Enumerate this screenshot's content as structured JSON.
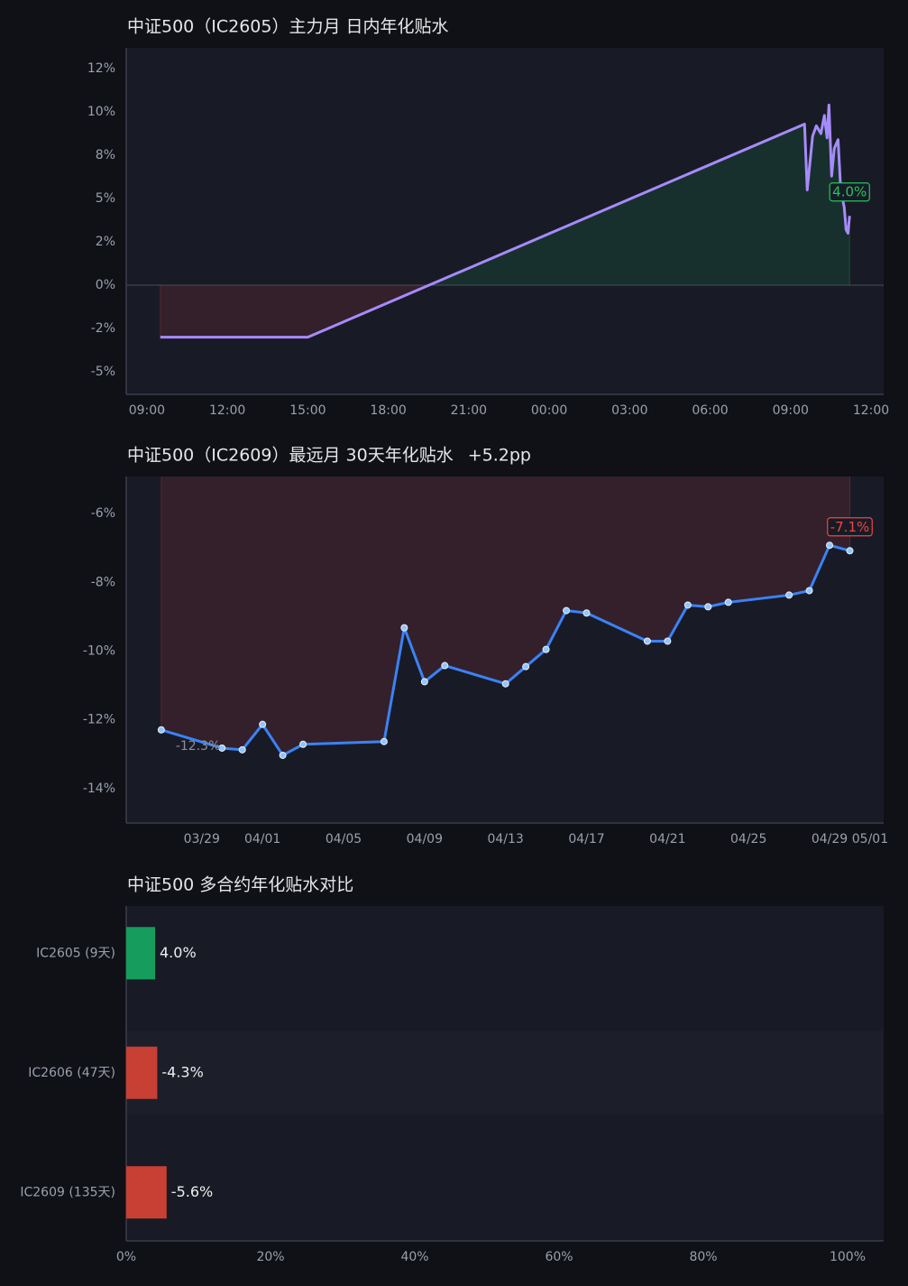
{
  "chart_data": [
    {
      "type": "line",
      "title": "中证500（IC2605）主力月 日内年化贴水",
      "x": [
        9.5,
        15,
        33.52,
        33.62,
        33.82,
        33.96,
        34.13,
        34.26,
        34.36,
        34.43,
        34.53,
        34.63,
        34.77,
        34.87,
        35.0,
        35.07,
        35.14,
        35.2
      ],
      "values": [
        -3.0,
        -3.0,
        9.3,
        5.5,
        8.6,
        9.2,
        8.75,
        9.8,
        8.5,
        10.4,
        6.3,
        7.9,
        8.4,
        5.5,
        4.5,
        3.2,
        3.0,
        4.0
      ],
      "value_labels": [
        null,
        null,
        null,
        null,
        null,
        null,
        null,
        null,
        null,
        null,
        null,
        null,
        null,
        null,
        null,
        null,
        null,
        "4.0%"
      ],
      "color": "#a78bfa",
      "positive_color": "#22c55e",
      "negative_color": "#ef4444",
      "markers": false,
      "grid": false,
      "xlim": [
        8.23,
        36.47
      ],
      "xticks": [
        {
          "value": 9,
          "label": "09:00"
        },
        {
          "value": 12,
          "label": "12:00"
        },
        {
          "value": 15,
          "label": "15:00"
        },
        {
          "value": 18,
          "label": "18:00"
        },
        {
          "value": 21,
          "label": "21:00"
        },
        {
          "value": 24,
          "label": "00:00"
        },
        {
          "value": 27,
          "label": "03:00"
        },
        {
          "value": 30,
          "label": "06:00"
        },
        {
          "value": 33,
          "label": "09:00"
        },
        {
          "value": 36,
          "label": "12:00"
        }
      ],
      "ylim": [
        -6.3,
        13.7
      ],
      "yticks": [
        {
          "value": 12.5,
          "label": "12%"
        },
        {
          "value": 10,
          "label": "10%"
        },
        {
          "value": 7.5,
          "label": "8%"
        },
        {
          "value": 5,
          "label": "5%"
        },
        {
          "value": 2.5,
          "label": "2%"
        },
        {
          "value": 0,
          "label": "0%"
        },
        {
          "value": -2.5,
          "label": "-2%"
        },
        {
          "value": -5,
          "label": "-5%"
        }
      ]
    },
    {
      "type": "line",
      "title": "中证500（IC2609）最远月 30天年化贴水",
      "change": "+5.2pp",
      "x": [
        -5,
        -2,
        -1,
        0,
        1,
        2,
        6,
        7,
        8,
        9,
        12,
        13,
        14,
        15,
        16,
        19,
        20,
        21,
        22,
        23,
        26,
        27,
        28,
        29
      ],
      "values": [
        -12.29,
        -12.82,
        -12.87,
        -12.13,
        -13.03,
        -12.71,
        -12.63,
        -9.32,
        -10.89,
        -10.42,
        -10.95,
        -10.45,
        -9.95,
        -8.82,
        -8.89,
        -9.71,
        -9.71,
        -8.66,
        -8.71,
        -8.58,
        -8.37,
        -8.24,
        -6.92,
        -7.08
      ],
      "value_labels": [
        "-12.3%",
        null,
        null,
        null,
        null,
        null,
        null,
        null,
        null,
        null,
        null,
        null,
        null,
        null,
        null,
        null,
        null,
        null,
        null,
        null,
        null,
        null,
        null,
        "-7.1%"
      ],
      "color": "#3b82f6",
      "positive_color": "#22c55e",
      "negative_color": "#ef4444",
      "markers": true,
      "grid": false,
      "xlim": [
        -6.73,
        30.67
      ],
      "xticks": [
        {
          "value": -3,
          "label": "03/29"
        },
        {
          "value": 0,
          "label": "04/01"
        },
        {
          "value": 4,
          "label": "04/05"
        },
        {
          "value": 8,
          "label": "04/09"
        },
        {
          "value": 12,
          "label": "04/13"
        },
        {
          "value": 16,
          "label": "04/17"
        },
        {
          "value": 20,
          "label": "04/21"
        },
        {
          "value": 24,
          "label": "04/25"
        },
        {
          "value": 28,
          "label": "04/29"
        },
        {
          "value": 30,
          "label": "05/01"
        }
      ],
      "ylim": [
        -15,
        -4.92
      ],
      "yticks": [
        {
          "value": -6,
          "label": "-6%"
        },
        {
          "value": -8,
          "label": "-8%"
        },
        {
          "value": -10,
          "label": "-10%"
        },
        {
          "value": -12,
          "label": "-12%"
        },
        {
          "value": -14,
          "label": "-14%"
        }
      ]
    },
    {
      "type": "barh",
      "title": "中证500 多合约年化贴水对比",
      "categories": [
        "IC2605 (9天)",
        "IC2606 (47天)",
        "IC2609 (135天)"
      ],
      "values": [
        4.0,
        -4.3,
        -5.6
      ],
      "value_labels": [
        "4.0%",
        "-4.3%",
        "-5.6%"
      ],
      "positive_color": "#169c5c",
      "negative_color": "#c83f33",
      "xlim": [
        0,
        105
      ],
      "xticks": [
        {
          "value": 0,
          "label": "0%"
        },
        {
          "value": 20,
          "label": "20%"
        },
        {
          "value": 40,
          "label": "40%"
        },
        {
          "value": 60,
          "label": "60%"
        },
        {
          "value": 80,
          "label": "80%"
        },
        {
          "value": 100,
          "label": "100%"
        }
      ]
    }
  ]
}
